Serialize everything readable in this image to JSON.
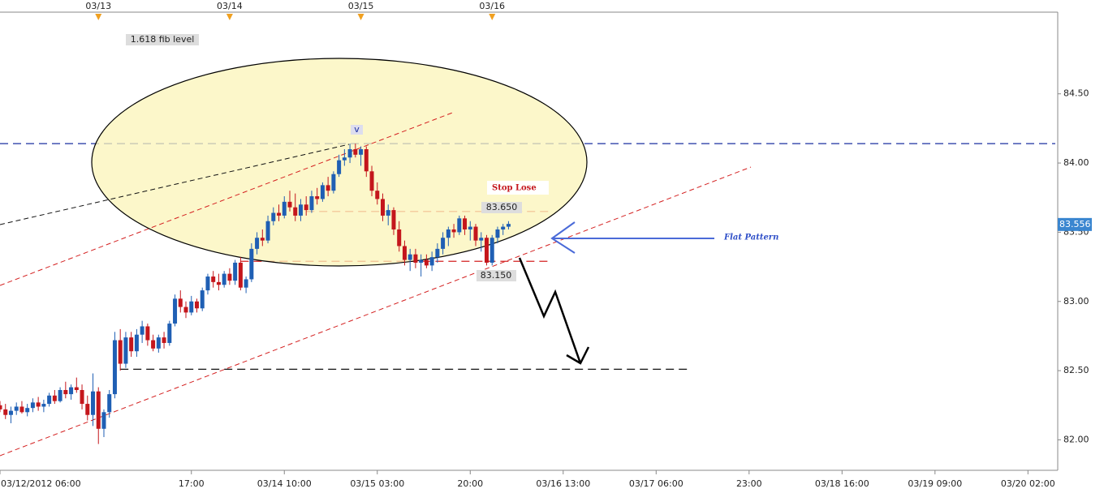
{
  "chart_data": {
    "type": "candlestick",
    "x": [
      "2012-03-12 06:00",
      "2012-03-12 07:00",
      "2012-03-12 08:00",
      "2012-03-12 09:00",
      "2012-03-12 10:00",
      "2012-03-12 11:00",
      "2012-03-12 12:00",
      "2012-03-12 13:00",
      "2012-03-12 14:00",
      "2012-03-12 15:00",
      "2012-03-12 16:00",
      "2012-03-12 17:00",
      "2012-03-12 18:00",
      "2012-03-12 19:00",
      "2012-03-12 20:00",
      "2012-03-12 21:00",
      "2012-03-12 22:00",
      "2012-03-12 23:00",
      "2012-03-13 00:00",
      "2012-03-13 01:00",
      "2012-03-13 02:00",
      "2012-03-13 03:00",
      "2012-03-13 04:00",
      "2012-03-13 05:00",
      "2012-03-13 06:00",
      "2012-03-13 07:00",
      "2012-03-13 08:00",
      "2012-03-13 09:00",
      "2012-03-13 10:00",
      "2012-03-13 11:00",
      "2012-03-13 12:00",
      "2012-03-13 13:00",
      "2012-03-13 14:00",
      "2012-03-13 15:00",
      "2012-03-13 16:00",
      "2012-03-13 17:00",
      "2012-03-13 18:00",
      "2012-03-13 19:00",
      "2012-03-13 20:00",
      "2012-03-13 21:00",
      "2012-03-13 22:00",
      "2012-03-13 23:00",
      "2012-03-14 00:00",
      "2012-03-14 01:00",
      "2012-03-14 02:00",
      "2012-03-14 03:00",
      "2012-03-14 04:00",
      "2012-03-14 05:00",
      "2012-03-14 06:00",
      "2012-03-14 07:00",
      "2012-03-14 08:00",
      "2012-03-14 09:00",
      "2012-03-14 10:00",
      "2012-03-14 11:00",
      "2012-03-14 12:00",
      "2012-03-14 13:00",
      "2012-03-14 14:00",
      "2012-03-14 15:00",
      "2012-03-14 16:00",
      "2012-03-14 17:00",
      "2012-03-14 18:00",
      "2012-03-14 19:00",
      "2012-03-14 20:00",
      "2012-03-14 21:00",
      "2012-03-14 22:00",
      "2012-03-14 23:00",
      "2012-03-15 00:00",
      "2012-03-15 01:00",
      "2012-03-15 02:00",
      "2012-03-15 03:00",
      "2012-03-15 04:00",
      "2012-03-15 05:00",
      "2012-03-15 06:00",
      "2012-03-15 07:00",
      "2012-03-15 08:00",
      "2012-03-15 09:00",
      "2012-03-15 10:00",
      "2012-03-15 11:00",
      "2012-03-15 12:00",
      "2012-03-15 13:00",
      "2012-03-15 14:00",
      "2012-03-15 15:00",
      "2012-03-15 16:00",
      "2012-03-15 17:00",
      "2012-03-15 18:00",
      "2012-03-15 19:00",
      "2012-03-15 20:00",
      "2012-03-15 21:00",
      "2012-03-15 22:00",
      "2012-03-15 23:00",
      "2012-03-16 00:00",
      "2012-03-16 01:00",
      "2012-03-16 02:00",
      "2012-03-16 03:00"
    ],
    "ohlc": [
      [
        82.25,
        82.28,
        82.2,
        82.22
      ],
      [
        82.22,
        82.26,
        82.15,
        82.18
      ],
      [
        82.18,
        82.24,
        82.12,
        82.21
      ],
      [
        82.21,
        82.27,
        82.18,
        82.24
      ],
      [
        82.24,
        82.28,
        82.19,
        82.2
      ],
      [
        82.2,
        82.26,
        82.17,
        82.23
      ],
      [
        82.23,
        82.3,
        82.2,
        82.27
      ],
      [
        82.27,
        82.31,
        82.21,
        82.24
      ],
      [
        82.24,
        82.29,
        82.2,
        82.26
      ],
      [
        82.26,
        82.34,
        82.24,
        82.32
      ],
      [
        82.32,
        82.36,
        82.26,
        82.28
      ],
      [
        82.28,
        82.38,
        82.27,
        82.36
      ],
      [
        82.36,
        82.42,
        82.3,
        82.33
      ],
      [
        82.33,
        82.4,
        82.29,
        82.38
      ],
      [
        82.38,
        82.45,
        82.34,
        82.36
      ],
      [
        82.36,
        82.4,
        82.22,
        82.26
      ],
      [
        82.26,
        82.32,
        82.14,
        82.18
      ],
      [
        82.18,
        82.48,
        82.1,
        82.35
      ],
      [
        82.35,
        82.38,
        81.97,
        82.08
      ],
      [
        82.08,
        82.22,
        82.02,
        82.2
      ],
      [
        82.2,
        82.36,
        82.16,
        82.33
      ],
      [
        82.33,
        82.78,
        82.3,
        82.72
      ],
      [
        82.72,
        82.8,
        82.5,
        82.55
      ],
      [
        82.55,
        82.78,
        82.52,
        82.74
      ],
      [
        82.74,
        82.78,
        82.6,
        82.64
      ],
      [
        82.64,
        82.8,
        82.6,
        82.76
      ],
      [
        82.76,
        82.86,
        82.7,
        82.82
      ],
      [
        82.82,
        82.84,
        82.68,
        82.72
      ],
      [
        82.72,
        82.76,
        82.64,
        82.66
      ],
      [
        82.66,
        82.76,
        82.63,
        82.74
      ],
      [
        82.74,
        82.78,
        82.66,
        82.7
      ],
      [
        82.7,
        82.86,
        82.68,
        82.84
      ],
      [
        82.84,
        83.05,
        82.82,
        83.02
      ],
      [
        83.02,
        83.08,
        82.92,
        82.96
      ],
      [
        82.96,
        83.0,
        82.88,
        82.92
      ],
      [
        82.92,
        83.04,
        82.9,
        83.0
      ],
      [
        83.0,
        83.02,
        82.92,
        82.95
      ],
      [
        82.95,
        83.1,
        82.93,
        83.08
      ],
      [
        83.08,
        83.2,
        83.05,
        83.18
      ],
      [
        83.18,
        83.22,
        83.1,
        83.14
      ],
      [
        83.14,
        83.2,
        83.08,
        83.12
      ],
      [
        83.12,
        83.22,
        83.1,
        83.2
      ],
      [
        83.2,
        83.24,
        83.12,
        83.15
      ],
      [
        83.15,
        83.3,
        83.12,
        83.28
      ],
      [
        83.28,
        83.32,
        83.08,
        83.1
      ],
      [
        83.1,
        83.18,
        83.06,
        83.16
      ],
      [
        83.16,
        83.42,
        83.14,
        83.38
      ],
      [
        83.38,
        83.5,
        83.34,
        83.46
      ],
      [
        83.46,
        83.52,
        83.4,
        83.44
      ],
      [
        83.44,
        83.62,
        83.42,
        83.58
      ],
      [
        83.58,
        83.68,
        83.55,
        83.64
      ],
      [
        83.64,
        83.7,
        83.58,
        83.62
      ],
      [
        83.62,
        83.76,
        83.6,
        83.72
      ],
      [
        83.72,
        83.8,
        83.65,
        83.68
      ],
      [
        83.68,
        83.78,
        83.58,
        83.62
      ],
      [
        83.62,
        83.74,
        83.58,
        83.7
      ],
      [
        83.7,
        83.76,
        83.62,
        83.66
      ],
      [
        83.66,
        83.8,
        83.64,
        83.76
      ],
      [
        83.76,
        83.82,
        83.7,
        83.74
      ],
      [
        83.74,
        83.86,
        83.72,
        83.84
      ],
      [
        83.84,
        83.9,
        83.76,
        83.8
      ],
      [
        83.8,
        83.94,
        83.78,
        83.92
      ],
      [
        83.92,
        84.06,
        83.9,
        84.02
      ],
      [
        84.02,
        84.1,
        83.98,
        84.04
      ],
      [
        84.04,
        84.14,
        84.0,
        84.1
      ],
      [
        84.1,
        84.14,
        84.04,
        84.06
      ],
      [
        84.06,
        84.12,
        83.98,
        84.1
      ],
      [
        84.1,
        84.12,
        83.9,
        83.94
      ],
      [
        83.94,
        83.98,
        83.76,
        83.8
      ],
      [
        83.8,
        83.86,
        83.7,
        83.74
      ],
      [
        83.74,
        83.78,
        83.58,
        83.62
      ],
      [
        83.62,
        83.7,
        83.55,
        83.66
      ],
      [
        83.66,
        83.68,
        83.48,
        83.52
      ],
      [
        83.52,
        83.58,
        83.36,
        83.4
      ],
      [
        83.4,
        83.44,
        83.26,
        83.3
      ],
      [
        83.3,
        83.38,
        83.22,
        83.34
      ],
      [
        83.34,
        83.38,
        83.24,
        83.28
      ],
      [
        83.28,
        83.34,
        83.18,
        83.3
      ],
      [
        83.3,
        83.34,
        83.24,
        83.26
      ],
      [
        83.26,
        83.36,
        83.22,
        83.32
      ],
      [
        83.32,
        83.42,
        83.28,
        83.38
      ],
      [
        83.38,
        83.5,
        83.34,
        83.46
      ],
      [
        83.46,
        83.54,
        83.4,
        83.52
      ],
      [
        83.52,
        83.56,
        83.46,
        83.5
      ],
      [
        83.5,
        83.62,
        83.48,
        83.6
      ],
      [
        83.6,
        83.62,
        83.48,
        83.52
      ],
      [
        83.52,
        83.58,
        83.44,
        83.54
      ],
      [
        83.54,
        83.56,
        83.4,
        83.44
      ],
      [
        83.44,
        83.5,
        83.36,
        83.46
      ],
      [
        83.46,
        83.48,
        83.26,
        83.28
      ],
      [
        83.28,
        83.48,
        83.26,
        83.46
      ],
      [
        83.46,
        83.54,
        83.42,
        83.52
      ],
      [
        83.52,
        83.56,
        83.48,
        83.54
      ],
      [
        83.54,
        83.58,
        83.52,
        83.56
      ]
    ],
    "up_color": "#1f5fb4",
    "down_color": "#c4161c",
    "xlim": [
      "2012-03-12 06:00",
      "2012-03-20 07:00"
    ],
    "xticks": [
      {
        "value": "2012-03-12 06:00",
        "label": "03/12/2012 06:00"
      },
      {
        "value": "2012-03-13 17:00",
        "label": "17:00"
      },
      {
        "value": "2012-03-14 10:00",
        "label": "03/14 10:00"
      },
      {
        "value": "2012-03-15 03:00",
        "label": "03/15 03:00"
      },
      {
        "value": "2012-03-15 20:00",
        "label": "20:00"
      },
      {
        "value": "2012-03-16 13:00",
        "label": "03/16 13:00"
      },
      {
        "value": "2012-03-17 06:00",
        "label": "03/17 06:00"
      },
      {
        "value": "2012-03-17 23:00",
        "label": "23:00"
      },
      {
        "value": "2012-03-18 16:00",
        "label": "03/18 16:00"
      },
      {
        "value": "2012-03-19 09:00",
        "label": "03/19 09:00"
      },
      {
        "value": "2012-03-20 02:00",
        "label": "03/20 02:00"
      }
    ],
    "date_markers": [
      {
        "value": "2012-03-13 00:00",
        "label": "03/13"
      },
      {
        "value": "2012-03-14 00:00",
        "label": "03/14"
      },
      {
        "value": "2012-03-15 00:00",
        "label": "03/15"
      },
      {
        "value": "2012-03-16 00:00",
        "label": "03/16"
      }
    ],
    "ylim": [
      81.78,
      85.09
    ],
    "yticks": [
      {
        "value": 82,
        "label": "82.00"
      },
      {
        "value": 82.5,
        "label": "82.50"
      },
      {
        "value": 83,
        "label": "83.00"
      },
      {
        "value": 83.5,
        "label": "83.50"
      },
      {
        "value": 84,
        "label": "84.00"
      },
      {
        "value": 84.5,
        "label": "84.50"
      }
    ],
    "last_price": 83.556,
    "levels": [
      {
        "value": 84.14,
        "color": "#1a2fa0",
        "from": "2012-03-12 06:00",
        "to": "2012-03-20 07:00"
      },
      {
        "value": 82.51,
        "color": "#111111",
        "from": "2012-03-13 04:00",
        "to": "2012-03-17 12:00"
      },
      {
        "value": 83.65,
        "color": "#d42020",
        "from": "2012-03-14 14:00",
        "to": "2012-03-16 11:00"
      },
      {
        "value": 83.29,
        "color": "#d42020",
        "from": "2012-03-14 02:00",
        "to": "2012-03-16 11:00"
      }
    ],
    "annotations": {
      "fib": "1.618 fib level",
      "peak": "v",
      "stop": "Stop Lose",
      "stop_price": "83.650",
      "low_price": "83.150",
      "pattern": "Flat Pattern"
    }
  }
}
